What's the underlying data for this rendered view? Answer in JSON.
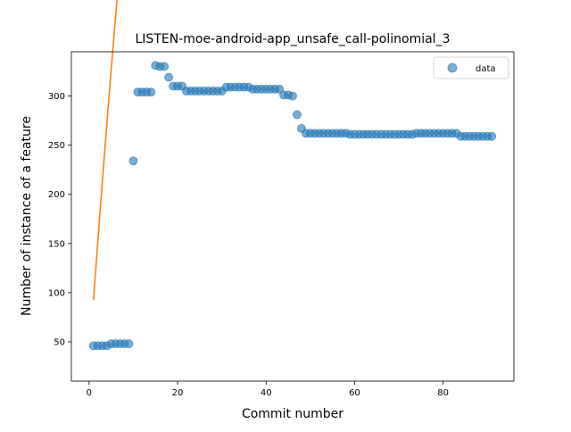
{
  "chart_data": {
    "type": "scatter",
    "title": "LISTEN-moe-android-app_unsafe_call-polinomial_3",
    "xlabel": "Commit number",
    "ylabel": "Number of instance of a feature",
    "xlim": [
      -4,
      96
    ],
    "ylim": [
      10,
      345
    ],
    "x_ticks": [
      0,
      20,
      40,
      60,
      80
    ],
    "y_ticks": [
      50,
      100,
      150,
      200,
      250,
      300
    ],
    "legend": {
      "placement": "top-right",
      "entries": [
        "data"
      ]
    },
    "colors": {
      "data": "#1f77b4",
      "fit": "#ff7f0e"
    },
    "series": [
      {
        "name": "data",
        "kind": "scatter",
        "x": [
          1,
          2,
          3,
          4,
          5,
          6,
          7,
          8,
          9,
          10,
          11,
          12,
          13,
          14,
          15,
          16,
          17,
          18,
          19,
          20,
          21,
          22,
          23,
          24,
          25,
          26,
          27,
          28,
          29,
          30,
          31,
          32,
          33,
          34,
          35,
          36,
          37,
          38,
          39,
          40,
          41,
          42,
          43,
          44,
          45,
          46,
          47,
          48,
          49,
          50,
          51,
          52,
          53,
          54,
          55,
          56,
          57,
          58,
          59,
          60,
          61,
          62,
          63,
          64,
          65,
          66,
          67,
          68,
          69,
          70,
          71,
          72,
          73,
          74,
          75,
          76,
          77,
          78,
          79,
          80,
          81,
          82,
          83,
          84,
          85,
          86,
          87,
          88,
          89,
          90,
          91
        ],
        "y": [
          46,
          46,
          46,
          46,
          48,
          48,
          48,
          48,
          48,
          234,
          304,
          304,
          304,
          304,
          331,
          330,
          330,
          319,
          310,
          310,
          310,
          305,
          305,
          305,
          305,
          305,
          305,
          305,
          305,
          305,
          309,
          309,
          309,
          309,
          309,
          309,
          307,
          307,
          307,
          307,
          307,
          307,
          307,
          301,
          301,
          300,
          281,
          267,
          262,
          262,
          262,
          262,
          262,
          262,
          262,
          262,
          262,
          262,
          261,
          261,
          261,
          261,
          261,
          261,
          261,
          261,
          261,
          261,
          261,
          261,
          261,
          261,
          261,
          262,
          262,
          262,
          262,
          262,
          262,
          262,
          262,
          262,
          262,
          259,
          259,
          259,
          259,
          259,
          259,
          259,
          259
        ]
      },
      {
        "kind": "line",
        "coefficients_cubic": [
          -1.4488e-06,
          0.0026834,
          -0.83604,
          63.4896,
          30.0
        ],
        "x_range": [
          1,
          91
        ]
      }
    ]
  }
}
